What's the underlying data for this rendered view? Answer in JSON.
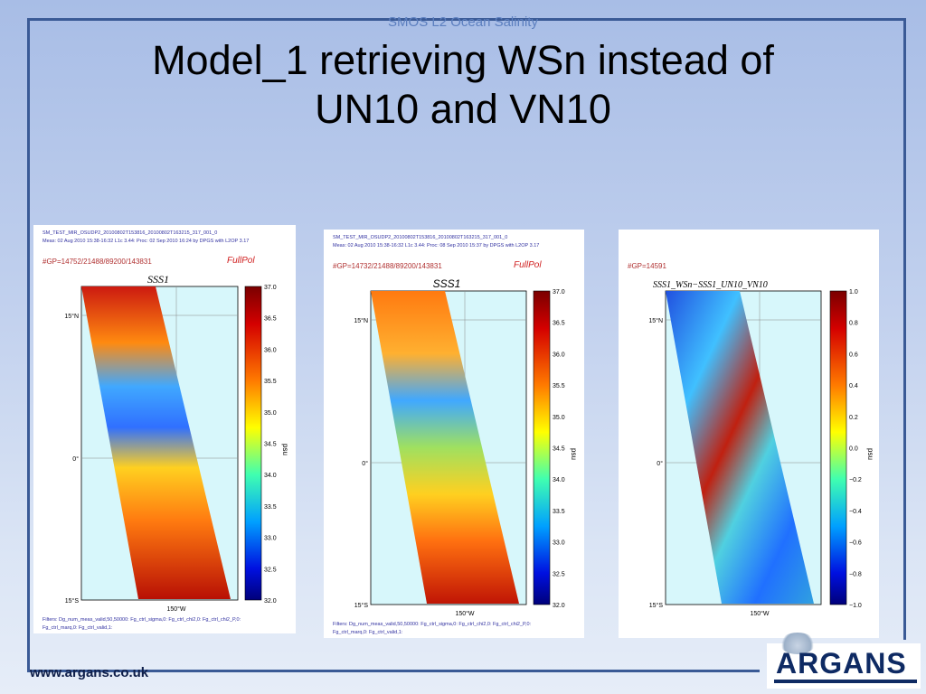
{
  "slide": {
    "top_caption": "SMOS L2 Ocean Salinity",
    "title_line1": "Model_1 retrieving WSn instead of",
    "title_line2": "UN10 and VN10",
    "footer_url": "www.argans.co.uk",
    "logo_text": "ARGANS"
  },
  "colors": {
    "frame": "#3a5a96",
    "caption": "#5c7fbf",
    "logo": "#0e2a63",
    "ocean": "#d7f7fb"
  },
  "panels": [
    {
      "header1": "SM_TEST_MIR_OSUDP2_20100802T153816_20100802T163215_317_001_0",
      "header2": "Meas: 02 Aug 2010 15:38-16:32 L1c 3.44: Proc: 02 Sep 2010 16:24 by DPGS with L2OP 3.17",
      "gp": "#GP=14752/21488/89200/143831",
      "mode": "FullPol",
      "plot_title": "SSS1",
      "lat_labels": [
        "15°N",
        "0°",
        "15°S"
      ],
      "lon_label": "150°W",
      "unit": "psu",
      "ticks": [
        "37.0",
        "36.5",
        "36.0",
        "35.5",
        "35.0",
        "34.5",
        "34.0",
        "33.5",
        "33.0",
        "32.5",
        "32.0"
      ],
      "footer1": "Filters: Dg_num_meas_valid,50,50000: Fg_ctrl_sigma,0: Fg_ctrl_chi2,0: Fg_ctrl_chi2_P,0:",
      "footer2": "Fg_ctrl_marq,0: Fg_ctrl_valid,1:"
    },
    {
      "header1": "SM_TEST_MIR_OSUDP2_20100802T153816_20100802T163215_317_001_0",
      "header2": "Meas: 02 Aug 2010 15:38-16:32 L1c 3.44: Proc: 08 Sep 2010 15:37 by DPGS with L2OP 3.17",
      "gp": "#GP=14732/21488/89200/143831",
      "mode": "FullPol",
      "plot_title": "SSS1",
      "lat_labels": [
        "15°N",
        "0°",
        "15°S"
      ],
      "lon_label": "150°W",
      "unit": "psu",
      "ticks": [
        "37.0",
        "36.5",
        "36.0",
        "35.5",
        "35.0",
        "34.5",
        "34.0",
        "33.5",
        "33.0",
        "32.5",
        "32.0"
      ],
      "footer1": "Filters: Dg_num_meas_valid,50,50000: Fg_ctrl_sigma,0: Fg_ctrl_chi2,0: Fg_ctrl_chi2_P,0:",
      "footer2": "Fg_ctrl_marq,0: Fg_ctrl_valid,1:"
    },
    {
      "gp": "#GP=14591",
      "plot_title": "SSS1_WSn−SSS1_UN10_VN10",
      "lat_labels": [
        "15°N",
        "0°",
        "15°S"
      ],
      "lon_label": "150°W",
      "unit": "psu",
      "ticks": [
        "1.0",
        "0.8",
        "0.6",
        "0.4",
        "0.2",
        "0.0",
        "−0.2",
        "−0.4",
        "−0.6",
        "−0.8",
        "−1.0"
      ]
    }
  ]
}
